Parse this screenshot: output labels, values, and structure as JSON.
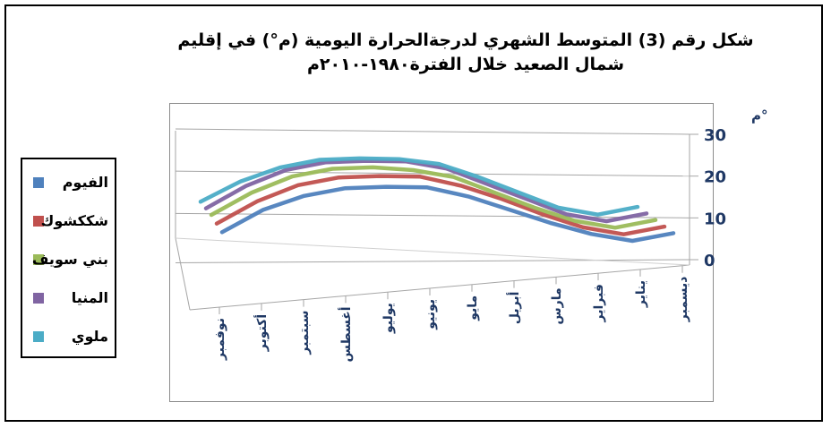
{
  "chart_data": {
    "type": "line",
    "title_line1": "شكل رقم (3) المتوسط الشهري لدرجةالحرارة اليومية (م°) في إقليم",
    "title_line2": "شمال الصعيد  خلال الفترة١٩٨٠-٢٠١٠م",
    "ylabel": "م°",
    "yticks": [
      "30",
      "20",
      "10",
      "0"
    ],
    "ylim": [
      0,
      30
    ],
    "categories": [
      "يناير",
      "فبراير",
      "مارس",
      "أبريل",
      "مايو",
      "يونيو",
      "يوليو",
      "أغسطس",
      "سبتمبر",
      "أكتوبر",
      "نوفمبر",
      "ديسمبر"
    ],
    "category_labels_display": [
      "ديسمبر",
      "نوفمبر",
      "أكتوبر",
      "سبتمبر",
      "أغسطس",
      "يوليو",
      "يونيو",
      "مايو",
      "أبريل",
      "مارس",
      "فبراير",
      "يناير"
    ],
    "category_labels_left_to_right": [
      "نوفمبر",
      "أكتوبر",
      "سبتمبر",
      "أغسطس",
      "يوليو",
      "يونيو",
      "مايو",
      "أبريل",
      "مارس",
      "فبراير",
      "يناير",
      "ديسمبر"
    ],
    "series": [
      {
        "name": "الفيوم",
        "color": "#4f81bd",
        "values": [
          13.5,
          15.5,
          18.5,
          22,
          25.5,
          28,
          28.5,
          28.5,
          27,
          24,
          19,
          15
        ]
      },
      {
        "name": "شككشوك",
        "color": "#c0504d",
        "values": [
          14,
          16,
          19.5,
          23.5,
          27,
          29.5,
          30,
          30,
          28.5,
          25,
          20,
          15.5
        ]
      },
      {
        "name": "بني سويف",
        "color": "#9bbb59",
        "values": [
          14.5,
          16.5,
          20,
          24,
          28,
          30,
          31,
          31,
          29.5,
          26,
          21,
          16
        ]
      },
      {
        "name": "المنيا",
        "color": "#8064a2",
        "values": [
          15,
          17,
          21,
          25,
          29,
          31,
          31.5,
          31.5,
          30,
          26.5,
          21.5,
          16.5
        ]
      },
      {
        "name": "ملوي",
        "color": "#4bacc6",
        "values": [
          15.5,
          17.5,
          21.5,
          25.5,
          29,
          30.5,
          31,
          31,
          29.5,
          26.5,
          22,
          17
        ]
      }
    ],
    "legend_position": "left",
    "grid": true
  }
}
